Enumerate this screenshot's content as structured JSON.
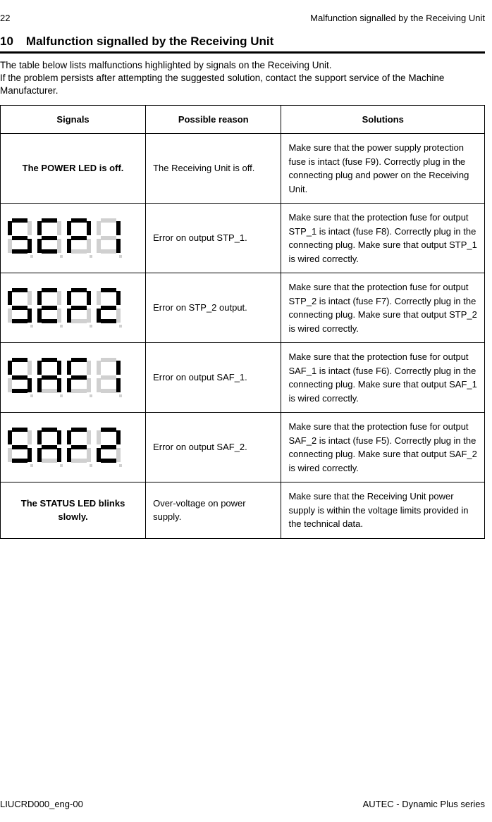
{
  "header": {
    "page_number": "22",
    "running_title": "Malfunction signalled by the Receiving Unit"
  },
  "section": {
    "number": "10",
    "title": "Malfunction signalled by the Receiving Unit"
  },
  "intro": {
    "line1": "The table below lists malfunctions highlighted by signals on the Receiving Unit.",
    "line2": "If the problem persists after attempting the suggested solution, contact the support service of the Machine Manufacturer."
  },
  "table": {
    "headers": {
      "c1": "Signals",
      "c2": "Possible reason",
      "c3": "Solutions"
    },
    "rows": [
      {
        "signal_type": "text",
        "signal_text": "The POWER LED is off.",
        "reason": "The Receiving Unit is off.",
        "solution": "Make sure that the power supply protection fuse is intact (fuse F9). Correctly plug in the connecting plug and power on the Receiving Unit."
      },
      {
        "signal_type": "seg",
        "segments": [
          {
            "a": 1,
            "b": 0,
            "c": 1,
            "d": 1,
            "e": 0,
            "f": 1,
            "g": 1
          },
          {
            "a": 1,
            "b": 0,
            "c": 0,
            "d": 1,
            "e": 1,
            "f": 1,
            "g": 1
          },
          {
            "a": 1,
            "b": 1,
            "c": 0,
            "d": 0,
            "e": 1,
            "f": 1,
            "g": 1
          },
          {
            "a": 0,
            "b": 1,
            "c": 1,
            "d": 0,
            "e": 0,
            "f": 0,
            "g": 0
          }
        ],
        "seg_label": "S.t.P.1",
        "reason": "Error on output STP_1.",
        "solution": "Make sure that the protection fuse for output STP_1 is intact (fuse F8). Correctly plug in the connecting plug. Make sure that output STP_1 is wired correctly."
      },
      {
        "signal_type": "seg",
        "segments": [
          {
            "a": 1,
            "b": 0,
            "c": 1,
            "d": 1,
            "e": 0,
            "f": 1,
            "g": 1
          },
          {
            "a": 1,
            "b": 0,
            "c": 0,
            "d": 1,
            "e": 1,
            "f": 1,
            "g": 1
          },
          {
            "a": 1,
            "b": 1,
            "c": 0,
            "d": 0,
            "e": 1,
            "f": 1,
            "g": 1
          },
          {
            "a": 1,
            "b": 1,
            "c": 0,
            "d": 1,
            "e": 1,
            "f": 0,
            "g": 1
          }
        ],
        "seg_label": "S.t.P.2",
        "reason": "Error on STP_2 output.",
        "solution": "Make sure that the protection fuse for output STP_2 is intact (fuse F7). Correctly plug in the connecting plug. Make sure that output STP_2 is wired correctly."
      },
      {
        "signal_type": "seg",
        "segments": [
          {
            "a": 1,
            "b": 0,
            "c": 1,
            "d": 1,
            "e": 0,
            "f": 1,
            "g": 1
          },
          {
            "a": 1,
            "b": 1,
            "c": 1,
            "d": 0,
            "e": 1,
            "f": 1,
            "g": 1
          },
          {
            "a": 1,
            "b": 0,
            "c": 0,
            "d": 0,
            "e": 1,
            "f": 1,
            "g": 1
          },
          {
            "a": 0,
            "b": 1,
            "c": 1,
            "d": 0,
            "e": 0,
            "f": 0,
            "g": 0
          }
        ],
        "seg_label": "S.A.F.1",
        "reason": "Error on output SAF_1.",
        "solution": "Make sure that the protection fuse for output SAF_1 is intact (fuse F6). Correctly plug in the connecting plug. Make sure that output SAF_1 is wired correctly."
      },
      {
        "signal_type": "seg",
        "segments": [
          {
            "a": 1,
            "b": 0,
            "c": 1,
            "d": 1,
            "e": 0,
            "f": 1,
            "g": 1
          },
          {
            "a": 1,
            "b": 1,
            "c": 1,
            "d": 0,
            "e": 1,
            "f": 1,
            "g": 1
          },
          {
            "a": 1,
            "b": 0,
            "c": 0,
            "d": 0,
            "e": 1,
            "f": 1,
            "g": 1
          },
          {
            "a": 1,
            "b": 1,
            "c": 0,
            "d": 1,
            "e": 1,
            "f": 0,
            "g": 1
          }
        ],
        "seg_label": "S.A.F.2",
        "reason": "Error on output SAF_2.",
        "solution": "Make sure that the protection fuse for output SAF_2 is intact (fuse F5). Correctly plug in the connecting plug. Make sure that output SAF_2 is wired correctly."
      },
      {
        "signal_type": "text",
        "signal_text": "The STATUS LED blinks slowly.",
        "reason": "Over-voltage on power supply.",
        "solution": "Make sure that the Receiving Unit power supply is within the voltage limits provided in the technical data."
      }
    ]
  },
  "footer": {
    "left": "LIUCRD000_eng-00",
    "right": "AUTEC - Dynamic Plus series"
  }
}
